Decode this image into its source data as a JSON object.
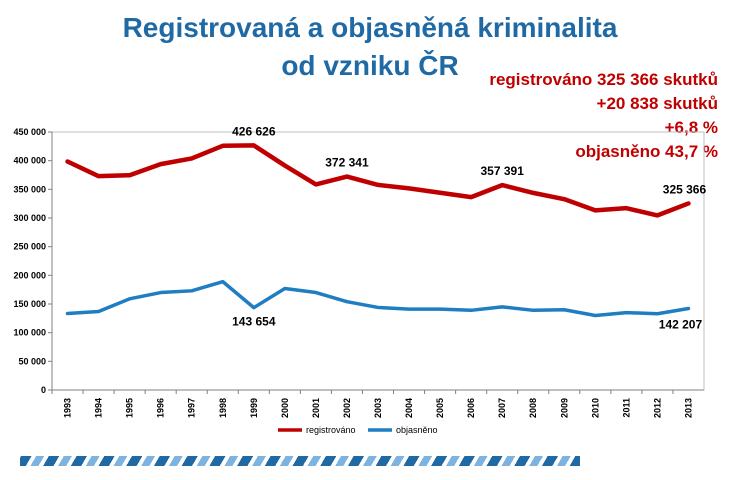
{
  "title_line1": "Registrovaná a objasněná kriminalita",
  "title_line2": "od vzniku ČR",
  "stats": [
    "registrováno 325 366 skutků",
    "+20 838 skutků",
    "+6,8 %",
    "objasněno 43,7 %"
  ],
  "colors": {
    "registrovano": "#c00000",
    "objasneno": "#1f7ec2",
    "title": "#1f6aa5"
  },
  "chart_data": {
    "type": "line",
    "categories": [
      "1993",
      "1994",
      "1995",
      "1996",
      "1997",
      "1998",
      "1999",
      "2000",
      "2001",
      "2002",
      "2003",
      "2004",
      "2005",
      "2006",
      "2007",
      "2008",
      "2009",
      "2010",
      "2011",
      "2012",
      "2013"
    ],
    "ylim": [
      0,
      450000
    ],
    "yticks": [
      {
        "value": 0,
        "label": "0"
      },
      {
        "value": 50000,
        "label": "50 000"
      },
      {
        "value": 100000,
        "label": "100 000"
      },
      {
        "value": 150000,
        "label": "150 000"
      },
      {
        "value": 200000,
        "label": "200 000"
      },
      {
        "value": 250000,
        "label": "250 000"
      },
      {
        "value": 300000,
        "label": "300 000"
      },
      {
        "value": 350000,
        "label": "350 000"
      },
      {
        "value": 400000,
        "label": "400 000"
      },
      {
        "value": 450000,
        "label": "450 000"
      }
    ],
    "legend_position": "bottom",
    "series": [
      {
        "name": "registrováno",
        "values": [
          398505,
          372949,
          374620,
          393980,
          403946,
          425930,
          426626,
          391469,
          358577,
          372341,
          357740,
          351629,
          344060,
          336446,
          357391,
          343799,
          332829,
          313387,
          317177,
          304528,
          325366
        ]
      },
      {
        "name": "objasněno",
        "values": [
          133500,
          137000,
          159000,
          170000,
          173000,
          189000,
          143654,
          177000,
          170000,
          154000,
          144000,
          141000,
          141000,
          139000,
          145000,
          139000,
          140000,
          130000,
          135000,
          133000,
          142207
        ]
      }
    ],
    "annotations": [
      {
        "series": 0,
        "index": 6,
        "text": "426 626"
      },
      {
        "series": 0,
        "index": 9,
        "text": "372 341"
      },
      {
        "series": 0,
        "index": 14,
        "text": "357 391"
      },
      {
        "series": 0,
        "index": 20,
        "text": "325 366"
      },
      {
        "series": 1,
        "index": 6,
        "text": "143 654"
      },
      {
        "series": 1,
        "index": 20,
        "text": "142 207"
      }
    ]
  }
}
